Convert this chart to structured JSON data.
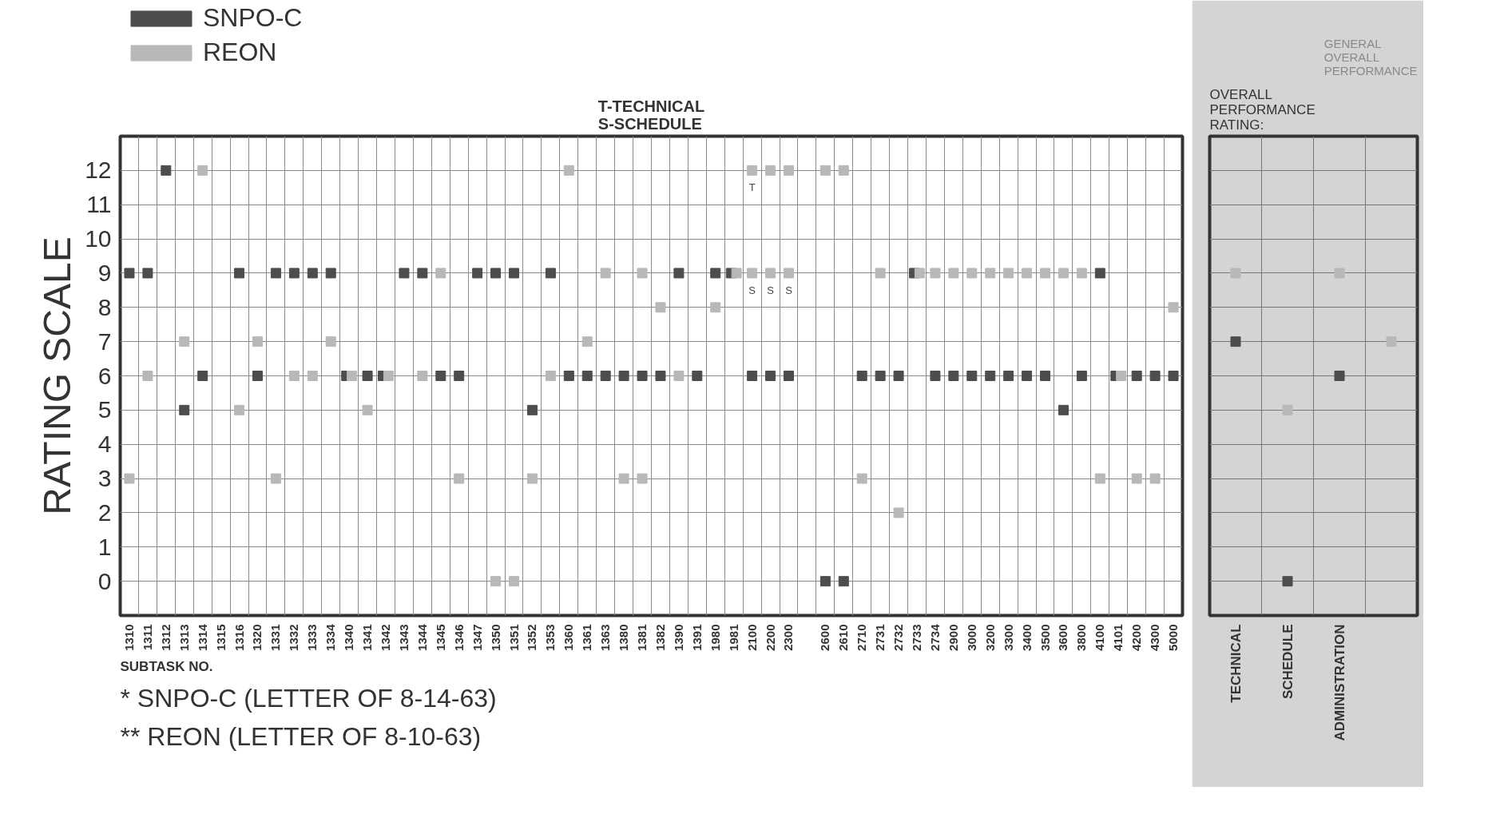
{
  "chart_data": [
    {
      "type": "scatter",
      "subtitle": "T-TECHNICAL\nS-SCHEDULE",
      "xlabel": "SUBTASK NO.",
      "ylabel": "RATING SCALE",
      "categories": [
        "1310",
        "1311",
        "1312",
        "1313",
        "1314",
        "1315",
        "1316",
        "1320",
        "1331",
        "1332",
        "1333",
        "1334",
        "1340",
        "1341",
        "1342",
        "1343",
        "1344",
        "1345",
        "1346",
        "1347",
        "1350",
        "1351",
        "1352",
        "1353",
        "1360",
        "1361",
        "1363",
        "1380",
        "1381",
        "1382",
        "1390",
        "1391",
        "1980",
        "1981",
        "2100",
        "2200",
        "2300",
        null,
        "2600",
        "2610",
        "2710",
        "2731",
        "2732",
        "2733",
        "2734",
        "2900",
        "3000",
        "3200",
        "3300",
        "3400",
        "3500",
        "3600",
        "3800",
        "4100",
        "4101",
        "4200",
        "4300",
        "5000"
      ],
      "series": [
        {
          "name": "SNPO-C",
          "color": "#4d4d4d",
          "values": [
            9,
            9,
            12,
            5,
            6,
            null,
            9,
            6,
            9,
            9,
            9,
            9,
            6,
            6,
            6,
            9,
            9,
            6,
            6,
            9,
            9,
            9,
            5,
            9,
            6,
            6,
            6,
            6,
            6,
            6,
            9,
            6,
            9,
            9,
            6,
            6,
            6,
            null,
            0,
            0,
            6,
            6,
            6,
            9,
            6,
            6,
            6,
            6,
            6,
            6,
            6,
            5,
            6,
            9,
            6,
            6,
            6,
            6
          ]
        },
        {
          "name": "REON",
          "color": "#b8b8b8",
          "values": [
            3,
            6,
            null,
            7,
            12,
            null,
            5,
            7,
            3,
            6,
            6,
            7,
            6,
            5,
            6,
            null,
            6,
            9,
            3,
            null,
            0,
            0,
            3,
            6,
            12,
            7,
            9,
            3,
            9,
            8,
            6,
            null,
            8,
            9,
            12,
            12,
            12,
            null,
            12,
            12,
            3,
            9,
            2,
            9,
            9,
            9,
            9,
            9,
            9,
            9,
            9,
            9,
            9,
            3,
            6,
            3,
            3,
            8
          ]
        },
        {
          "color": "#b8b8b8",
          "values": [
            null,
            null,
            null,
            null,
            null,
            null,
            null,
            null,
            null,
            null,
            null,
            null,
            null,
            null,
            null,
            null,
            null,
            null,
            null,
            null,
            null,
            null,
            null,
            null,
            null,
            null,
            null,
            null,
            3,
            null,
            null,
            null,
            null,
            null,
            9,
            9,
            9,
            null,
            null,
            null,
            null,
            null,
            null,
            null,
            null,
            null,
            null,
            null,
            null,
            null,
            null,
            null,
            null,
            null,
            null,
            null,
            null,
            null
          ]
        }
      ],
      "ylim": [
        -1,
        13
      ],
      "yticks": [
        0,
        1,
        2,
        3,
        4,
        5,
        6,
        7,
        8,
        9,
        10,
        11,
        12
      ],
      "grid": true,
      "legend": "top left",
      "marker": "square",
      "annotations": [
        {
          "text": "T",
          "x": "2100",
          "y": 12
        },
        {
          "text": "S",
          "x": "2100",
          "y": 9
        },
        {
          "text": "S",
          "x": "2200",
          "y": 9
        },
        {
          "text": "S",
          "x": "2300",
          "y": 9
        },
        "* SNPO-C   (LETTER OF 8-14-63)",
        "** REON   (LETTER OF 8-10-63)"
      ]
    },
    {
      "type": "scatter",
      "title": "OVERALL PERFORMANCE RATING:",
      "categories": [
        "TECHNICAL",
        "SCHEDULE",
        "ADMINISTRATION",
        null
      ],
      "series": [
        {
          "color": "#4d4d4d",
          "values": [
            7,
            0,
            6,
            null
          ]
        },
        {
          "color": "#b8b8b8",
          "values": [
            9,
            5,
            9,
            7
          ]
        }
      ],
      "annotations": [
        "GENERAL OVERALL PERFORMANCE"
      ],
      "ylim": [
        -1,
        13
      ],
      "yticks": [
        0,
        1,
        2,
        3,
        4,
        5,
        6,
        7,
        8,
        9,
        10,
        11,
        12
      ],
      "grid": true,
      "marker": "square",
      "tick_labels": "x"
    }
  ]
}
